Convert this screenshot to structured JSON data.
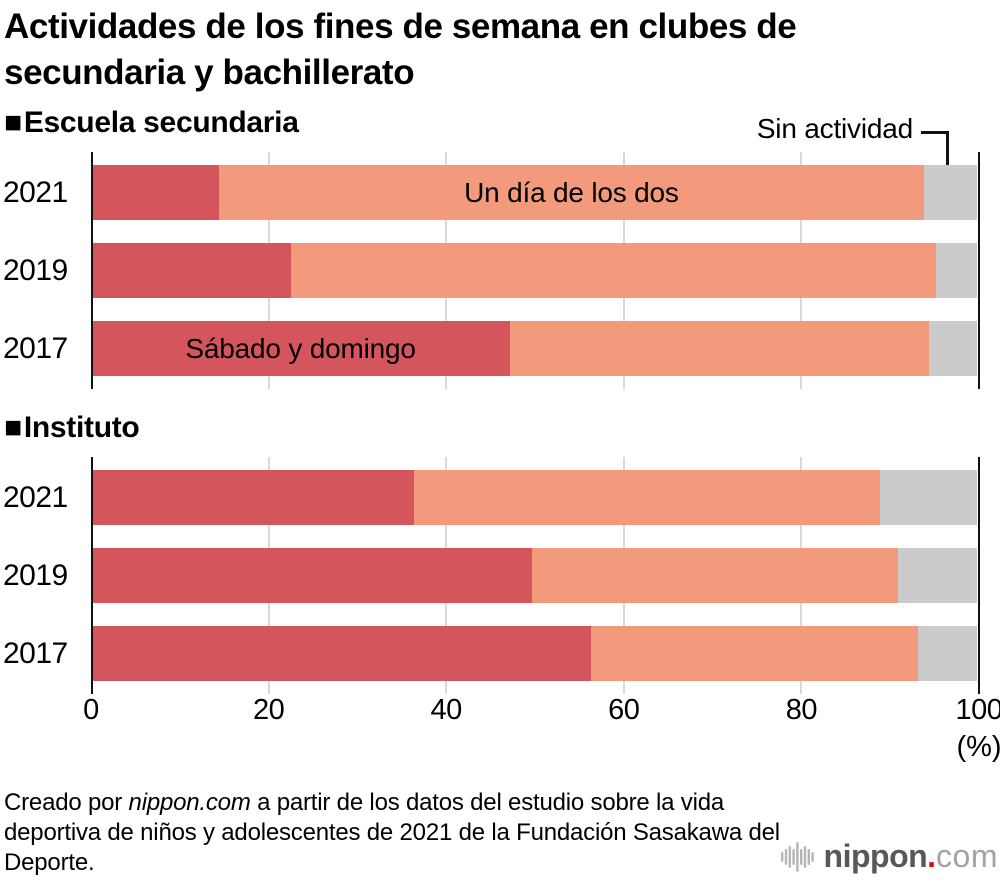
{
  "page": {
    "title": "Actividades de los fines de semana en clubes de secundaria y bachillerato"
  },
  "sections": [
    {
      "marker": "■",
      "label": "Escuela secundaria"
    },
    {
      "marker": "■",
      "label": "Instituto"
    }
  ],
  "callout": {
    "label": "Sin actividad"
  },
  "axis": {
    "ticks": [
      0,
      20,
      40,
      60,
      80,
      100
    ],
    "unit": "(%)"
  },
  "chart_data": [
    {
      "id": "secundaria",
      "type": "bar",
      "stacked": true,
      "orientation": "horizontal",
      "title": "Escuela secundaria",
      "categories": [
        "2021",
        "2019",
        "2017"
      ],
      "series": [
        {
          "name": "Sábado y domingo",
          "color": "#d5555c",
          "values": [
            14.2,
            22.4,
            47.2
          ]
        },
        {
          "name": "Un día de los dos",
          "color": "#f29a7b",
          "values": [
            79.8,
            73.0,
            47.4
          ]
        },
        {
          "name": "Sin actividad",
          "color": "#cbcbcb",
          "values": [
            6.0,
            4.6,
            5.4
          ]
        }
      ],
      "segment_labels": [
        {
          "row": 0,
          "series": 1,
          "text": "Un día de los dos"
        },
        {
          "row": 2,
          "series": 0,
          "text": "Sábado y domingo"
        }
      ],
      "xlim": [
        0,
        100
      ],
      "grid_ticks": [
        20,
        40,
        60,
        80
      ]
    },
    {
      "id": "instituto",
      "type": "bar",
      "stacked": true,
      "orientation": "horizontal",
      "title": "Instituto",
      "categories": [
        "2021",
        "2019",
        "2017"
      ],
      "series": [
        {
          "name": "Sábado y domingo",
          "color": "#d5555c",
          "values": [
            36.3,
            49.7,
            56.3
          ]
        },
        {
          "name": "Un día de los dos",
          "color": "#f29a7b",
          "values": [
            52.7,
            41.4,
            37.0
          ]
        },
        {
          "name": "Sin actividad",
          "color": "#cbcbcb",
          "values": [
            11.0,
            8.9,
            6.7
          ]
        }
      ],
      "segment_labels": [],
      "xlim": [
        0,
        100
      ],
      "grid_ticks": [
        20,
        40,
        60,
        80
      ]
    }
  ],
  "footer": {
    "prefix": "Creado por ",
    "brand": "nippon.com",
    "rest": " a partir de los datos del estudio sobre la vida deportiva de niños y adolescentes de 2021 de la Fundación Sasakawa del Deporte."
  },
  "logo": {
    "name": "nippon",
    "dot": ".",
    "tld": "com"
  },
  "colors": {
    "saturday_sunday": "#d5555c",
    "one_day": "#f29a7b",
    "no_activity": "#cbcbcb",
    "gridline": "#d9d9d9",
    "axis": "#111111",
    "logo_dot": "#e60012",
    "logo_text": "#595757",
    "logo_tld": "#a2a3a3"
  }
}
